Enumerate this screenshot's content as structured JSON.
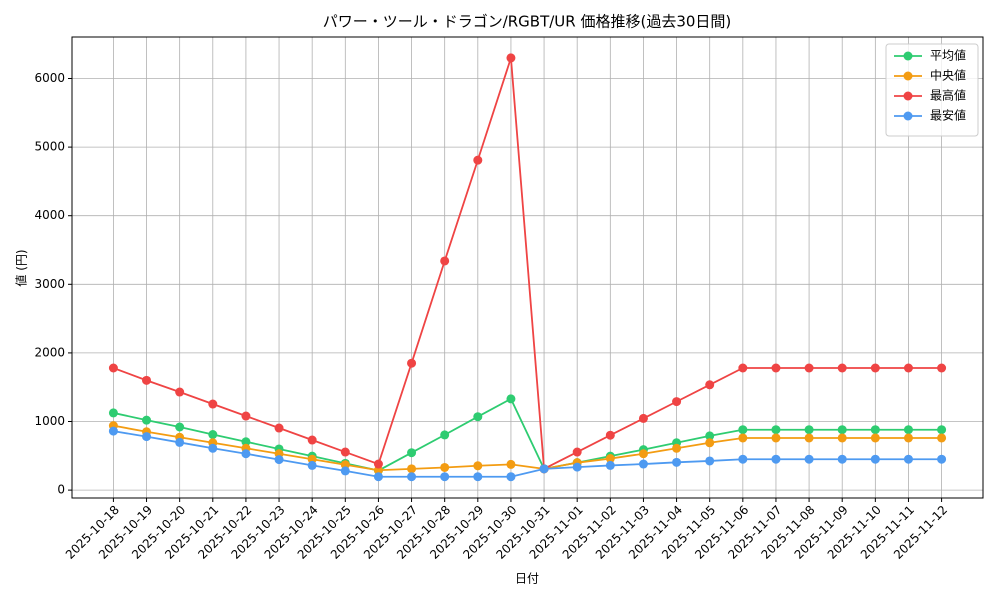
{
  "chart_data": {
    "type": "line",
    "title": "パワー・ツール・ドラゴン/RGBT/UR 価格推移(過去30日間)",
    "x_label": "日付",
    "y_label": "値 (円)",
    "categories": [
      "2025-10-18",
      "2025-10-19",
      "2025-10-20",
      "2025-10-21",
      "2025-10-22",
      "2025-10-23",
      "2025-10-24",
      "2025-10-25",
      "2025-10-26",
      "2025-10-27",
      "2025-10-28",
      "2025-10-29",
      "2025-10-30",
      "2025-10-31",
      "2025-11-01",
      "2025-11-02",
      "2025-11-03",
      "2025-11-04",
      "2025-11-05",
      "2025-11-06",
      "2025-11-07",
      "2025-11-08",
      "2025-11-09",
      "2025-11-10",
      "2025-11-11",
      "2025-11-12"
    ],
    "series": [
      {
        "name": "平均値",
        "color": "#2ecc71",
        "values": [
          1125,
          1020,
          920,
          810,
          705,
          600,
          495,
          390,
          285,
          545,
          805,
          1070,
          1330,
          310,
          400,
          495,
          590,
          690,
          790,
          880,
          880,
          880,
          880,
          880,
          880,
          880
        ]
      },
      {
        "name": "中央値",
        "color": "#f39c12",
        "values": [
          940,
          850,
          770,
          690,
          610,
          530,
          450,
          370,
          290,
          310,
          330,
          355,
          375,
          310,
          400,
          460,
          530,
          610,
          690,
          760,
          760,
          760,
          760,
          760,
          760,
          760
        ]
      },
      {
        "name": "最高値",
        "color": "#ef4444",
        "values": [
          1780,
          1600,
          1430,
          1255,
          1080,
          905,
          730,
          555,
          380,
          1850,
          3340,
          4810,
          6300,
          310,
          555,
          800,
          1045,
          1290,
          1535,
          1780,
          1780,
          1780,
          1780,
          1780,
          1780,
          1780
        ]
      },
      {
        "name": "最安値",
        "color": "#4e9af1",
        "values": [
          860,
          780,
          695,
          610,
          530,
          445,
          360,
          280,
          195,
          195,
          195,
          195,
          195,
          310,
          335,
          360,
          380,
          405,
          425,
          450,
          450,
          450,
          450,
          450,
          450,
          450
        ]
      }
    ],
    "ylim": [
      -115,
      6605
    ],
    "yticks": [
      0,
      1000,
      2000,
      3000,
      4000,
      5000,
      6000
    ],
    "grid": true,
    "legend": "upper right"
  }
}
